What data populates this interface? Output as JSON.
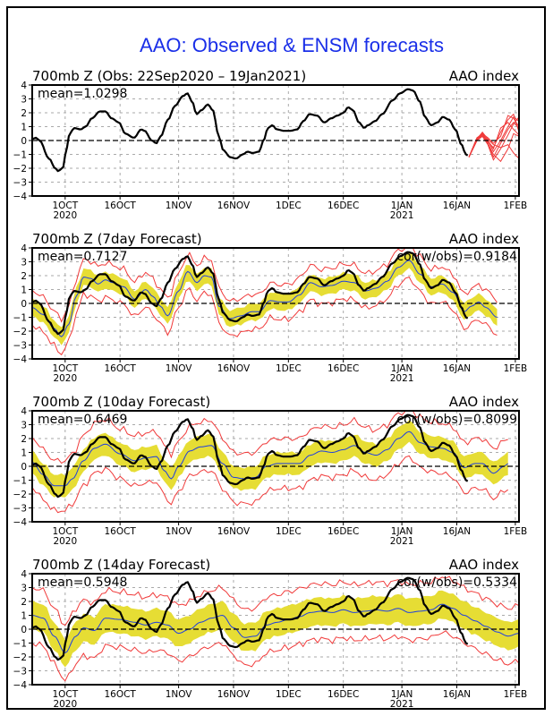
{
  "chart_data": {
    "type": "line",
    "title": "AAO: Observed & ENSM forecasts",
    "start_date": "22Sep2020",
    "x_unit": "days since 22Sep2020",
    "xlim": [
      0,
      133
    ],
    "ylim": [
      -4,
      4
    ],
    "yticks": [
      -4,
      -3,
      -2,
      -1,
      0,
      1,
      2,
      3,
      4
    ],
    "xticks": [
      {
        "day": 9,
        "label": "1OCT",
        "sub": "2020"
      },
      {
        "day": 24,
        "label": "16OCT",
        "sub": ""
      },
      {
        "day": 40,
        "label": "1NOV",
        "sub": ""
      },
      {
        "day": 55,
        "label": "16NOV",
        "sub": ""
      },
      {
        "day": 70,
        "label": "1DEC",
        "sub": ""
      },
      {
        "day": 85,
        "label": "16DEC",
        "sub": ""
      },
      {
        "day": 101,
        "label": "1JAN",
        "sub": "2021"
      },
      {
        "day": 116,
        "label": "16JAN",
        "sub": ""
      },
      {
        "day": 132,
        "label": "1FEB",
        "sub": ""
      }
    ],
    "grid": true,
    "observed": {
      "name": "Observed AAO index",
      "color": "#000000",
      "points": [
        [
          0,
          0.1
        ],
        [
          1,
          0.2
        ],
        [
          2,
          0
        ],
        [
          4.6,
          -1.3
        ],
        [
          6.3,
          -2.0
        ],
        [
          7,
          -2.2
        ],
        [
          8.3,
          -2.0
        ],
        [
          9.5,
          -0.5
        ],
        [
          10.2,
          0.5
        ],
        [
          11.5,
          0.9
        ],
        [
          13.2,
          0.8
        ],
        [
          14.6,
          1.0
        ],
        [
          16.3,
          1.6
        ],
        [
          18.5,
          2.1
        ],
        [
          20,
          2.1
        ],
        [
          21.7,
          1.6
        ],
        [
          23.7,
          1.3
        ],
        [
          25.4,
          0.5
        ],
        [
          27.8,
          0.2
        ],
        [
          29.8,
          0.8
        ],
        [
          30.7,
          0.7
        ],
        [
          32.7,
          0
        ],
        [
          33.9,
          -0.2
        ],
        [
          35.1,
          0.3
        ],
        [
          37.1,
          1.5
        ],
        [
          39,
          2.5
        ],
        [
          41.2,
          3.2
        ],
        [
          42.4,
          3.4
        ],
        [
          43.7,
          2.8
        ],
        [
          44.9,
          1.9
        ],
        [
          46.3,
          2.2
        ],
        [
          48,
          2.6
        ],
        [
          49.3,
          2.2
        ],
        [
          51,
          0.3
        ],
        [
          52.2,
          -0.7
        ],
        [
          54.1,
          -1.2
        ],
        [
          55.6,
          -1.3
        ],
        [
          57.6,
          -1.0
        ],
        [
          58.8,
          -0.8
        ],
        [
          60.2,
          -0.9
        ],
        [
          62,
          -0.8
        ],
        [
          63.2,
          0
        ],
        [
          64.4,
          0.9
        ],
        [
          65.6,
          1.1
        ],
        [
          66.8,
          0.8
        ],
        [
          68.8,
          0.7
        ],
        [
          70.5,
          0.7
        ],
        [
          72.4,
          0.8
        ],
        [
          74.1,
          1.4
        ],
        [
          75.8,
          1.9
        ],
        [
          77.8,
          1.8
        ],
        [
          79.8,
          1.3
        ],
        [
          81.7,
          1.6
        ],
        [
          83.4,
          1.8
        ],
        [
          85.1,
          2.0
        ],
        [
          86.3,
          2.4
        ],
        [
          87.6,
          2.2
        ],
        [
          89.3,
          1.3
        ],
        [
          90.7,
          0.9
        ],
        [
          91.7,
          1.1
        ],
        [
          93.7,
          1.4
        ],
        [
          95.6,
          1.9
        ],
        [
          98.5,
          2.9
        ],
        [
          100.5,
          3.4
        ],
        [
          102.7,
          3.7
        ],
        [
          104.1,
          3.6
        ],
        [
          105.9,
          2.8
        ],
        [
          107.3,
          1.7
        ],
        [
          109,
          1.1
        ],
        [
          110.7,
          1.3
        ],
        [
          112.2,
          1.7
        ],
        [
          113.9,
          1.5
        ],
        [
          115.6,
          0.8
        ],
        [
          117.3,
          -0.3
        ],
        [
          118.5,
          -1.0
        ],
        [
          119.3,
          -1.1
        ]
      ]
    },
    "panels": [
      {
        "title": "700mb Z (Obs: 22Sep2020 – 19Jan2021)",
        "right_label": "AAO index",
        "mean_label": "mean=1.0298",
        "cor_label": "",
        "ensemble_members": [
          [
            [
              119.3,
              -1.2
            ],
            [
              121.5,
              0
            ],
            [
              123,
              0.5
            ],
            [
              124.5,
              0.2
            ],
            [
              126,
              -0.2
            ],
            [
              128,
              0.3
            ],
            [
              130,
              1.8
            ],
            [
              131.5,
              1.6
            ],
            [
              133,
              1.0
            ]
          ],
          [
            [
              119.3,
              -1.2
            ],
            [
              121.5,
              0.1
            ],
            [
              123,
              0.4
            ],
            [
              124.5,
              -0.1
            ],
            [
              126,
              -0.5
            ],
            [
              128,
              0.6
            ],
            [
              130,
              1.5
            ],
            [
              131.5,
              1.9
            ],
            [
              133,
              0.6
            ]
          ],
          [
            [
              119.3,
              -1.2
            ],
            [
              121.5,
              0.2
            ],
            [
              123,
              0.5
            ],
            [
              124.5,
              0
            ],
            [
              126,
              -0.8
            ],
            [
              128,
              0
            ],
            [
              130,
              1.0
            ],
            [
              131.5,
              1.7
            ],
            [
              133,
              1.4
            ]
          ],
          [
            [
              119.3,
              -1.2
            ],
            [
              121.5,
              0
            ],
            [
              123,
              0.3
            ],
            [
              124.5,
              -0.3
            ],
            [
              126,
              -1.4
            ],
            [
              128,
              -0.6
            ],
            [
              130,
              0.4
            ],
            [
              131.5,
              1.2
            ],
            [
              133,
              1.7
            ]
          ],
          [
            [
              119.3,
              -1.2
            ],
            [
              121.5,
              0.1
            ],
            [
              123,
              0.6
            ],
            [
              124.5,
              0.1
            ],
            [
              126,
              -0.3
            ],
            [
              128,
              -0.5
            ],
            [
              130,
              -0.3
            ],
            [
              131.5,
              -0.9
            ],
            [
              133,
              -1.3
            ]
          ],
          [
            [
              119.3,
              -1.2
            ],
            [
              121.5,
              0
            ],
            [
              123,
              0.4
            ],
            [
              124.5,
              -0.2
            ],
            [
              126,
              -1.0
            ],
            [
              128,
              -1.5
            ],
            [
              130,
              -0.6
            ],
            [
              131.5,
              0.5
            ],
            [
              133,
              0.3
            ]
          ],
          [
            [
              119.3,
              -1.2
            ],
            [
              121.5,
              0.2
            ],
            [
              123,
              0.3
            ],
            [
              124.5,
              0
            ],
            [
              126,
              -0.6
            ],
            [
              128,
              0.9
            ],
            [
              130,
              1.3
            ],
            [
              131.5,
              0.8
            ],
            [
              133,
              0.4
            ]
          ],
          [
            [
              119.3,
              -1.2
            ],
            [
              121.5,
              0.1
            ],
            [
              123,
              0.5
            ],
            [
              124.5,
              -0.2
            ],
            [
              126,
              -1.2
            ],
            [
              128,
              -0.2
            ],
            [
              130,
              0.8
            ],
            [
              131.5,
              1.3
            ],
            [
              133,
              0.9
            ]
          ]
        ]
      },
      {
        "title": "700mb Z (7day Forecast)",
        "right_label": "AAO index",
        "mean_label": "mean=0.7127",
        "cor_label": "cor(w/obs)=0.9184",
        "forecast_end_day": 127,
        "mean": [
          [
            0,
            -0.3
          ],
          [
            3,
            -0.8
          ],
          [
            6,
            -1.8
          ],
          [
            8,
            -2.4
          ],
          [
            10,
            -1.5
          ],
          [
            12,
            0.5
          ],
          [
            14,
            1.9
          ],
          [
            16,
            1.8
          ],
          [
            18,
            1.4
          ],
          [
            20,
            1.7
          ],
          [
            22,
            1.5
          ],
          [
            25,
            1.2
          ],
          [
            28,
            0.3
          ],
          [
            31,
            1.0
          ],
          [
            33,
            0.5
          ],
          [
            35,
            -0.2
          ],
          [
            37,
            -0.9
          ],
          [
            40,
            0.9
          ],
          [
            42.5,
            2.3
          ],
          [
            45,
            1.5
          ],
          [
            47,
            2.0
          ],
          [
            49,
            1.9
          ],
          [
            51,
            -0.2
          ],
          [
            54,
            -1.1
          ],
          [
            57,
            -0.9
          ],
          [
            60,
            -0.6
          ],
          [
            62,
            -0.6
          ],
          [
            65,
            0.2
          ],
          [
            68,
            0.1
          ],
          [
            70,
            0.1
          ],
          [
            73,
            0.6
          ],
          [
            76,
            1.5
          ],
          [
            79,
            1.2
          ],
          [
            82,
            1.3
          ],
          [
            85,
            1.6
          ],
          [
            88,
            1.5
          ],
          [
            91,
            0.9
          ],
          [
            94,
            1.1
          ],
          [
            97,
            1.6
          ],
          [
            100,
            2.6
          ],
          [
            103,
            3.1
          ],
          [
            106,
            2.1
          ],
          [
            109,
            1.2
          ],
          [
            112,
            1.4
          ],
          [
            115,
            0.8
          ],
          [
            118,
            -0.6
          ],
          [
            120,
            -0.2
          ],
          [
            122,
            0.1
          ],
          [
            124,
            -0.3
          ],
          [
            127,
            -1.0
          ]
        ],
        "spread": 0.6,
        "outer_offset": 1.25
      },
      {
        "title": "700mb Z (10day Forecast)",
        "right_label": "AAO index",
        "mean_label": "mean=0.6469",
        "cor_label": "cor(w/obs)=0.8099",
        "forecast_end_day": 130,
        "mean": [
          [
            0,
            0.3
          ],
          [
            3,
            -0.6
          ],
          [
            6,
            -1.4
          ],
          [
            9,
            -1.4
          ],
          [
            11,
            -0.9
          ],
          [
            14,
            0.4
          ],
          [
            17,
            1.3
          ],
          [
            20,
            1.6
          ],
          [
            24,
            0.9
          ],
          [
            28,
            0.4
          ],
          [
            31,
            0.6
          ],
          [
            34,
            0.7
          ],
          [
            36,
            -0.3
          ],
          [
            38,
            -0.9
          ],
          [
            40,
            0
          ],
          [
            43,
            1.1
          ],
          [
            46,
            1.4
          ],
          [
            49,
            1.5
          ],
          [
            52,
            0.2
          ],
          [
            55,
            -0.8
          ],
          [
            58,
            -0.9
          ],
          [
            61,
            -0.8
          ],
          [
            64,
            0
          ],
          [
            67,
            0.2
          ],
          [
            70,
            0.2
          ],
          [
            73,
            0.2
          ],
          [
            76,
            0.8
          ],
          [
            79,
            1.1
          ],
          [
            82,
            1.0
          ],
          [
            85,
            1.2
          ],
          [
            88,
            1.5
          ],
          [
            91,
            1.0
          ],
          [
            94,
            0.8
          ],
          [
            97,
            1.2
          ],
          [
            100,
            2.0
          ],
          [
            103,
            2.5
          ],
          [
            106,
            1.7
          ],
          [
            109,
            1.4
          ],
          [
            112,
            1.3
          ],
          [
            115,
            1.0
          ],
          [
            118,
            -0.1
          ],
          [
            121,
            0.2
          ],
          [
            123,
            0.2
          ],
          [
            126,
            -0.5
          ],
          [
            129,
            0
          ],
          [
            130,
            0.2
          ]
        ],
        "spread": 0.8,
        "outer_offset": 1.8
      },
      {
        "title": "700mb Z (14day Forecast)",
        "right_label": "AAO index",
        "mean_label": "mean=0.5948",
        "cor_label": "cor(w/obs)=0.5334",
        "forecast_end_day": 133,
        "mean": [
          [
            0,
            1.0
          ],
          [
            3,
            0.8
          ],
          [
            6,
            -0.5
          ],
          [
            9,
            -1.7
          ],
          [
            12,
            -0.5
          ],
          [
            14,
            0.1
          ],
          [
            17,
            -0.1
          ],
          [
            20,
            0.8
          ],
          [
            24,
            0.7
          ],
          [
            28,
            0.5
          ],
          [
            31,
            0.3
          ],
          [
            34,
            0.5
          ],
          [
            37,
            0.3
          ],
          [
            40,
            -0.3
          ],
          [
            43,
            0
          ],
          [
            46,
            0.5
          ],
          [
            49,
            0.8
          ],
          [
            52,
            1.0
          ],
          [
            55,
            0.1
          ],
          [
            58,
            -0.6
          ],
          [
            61,
            -0.5
          ],
          [
            64,
            0.3
          ],
          [
            67,
            0.5
          ],
          [
            70,
            0.7
          ],
          [
            73,
            0.9
          ],
          [
            76,
            1.2
          ],
          [
            79,
            1.3
          ],
          [
            82,
            1.2
          ],
          [
            85,
            1.4
          ],
          [
            88,
            1.2
          ],
          [
            91,
            1.3
          ],
          [
            94,
            1.4
          ],
          [
            97,
            1.3
          ],
          [
            100,
            1.5
          ],
          [
            103,
            1.2
          ],
          [
            106,
            1.3
          ],
          [
            109,
            1.4
          ],
          [
            112,
            1.8
          ],
          [
            115,
            1.5
          ],
          [
            118,
            1.0
          ],
          [
            121,
            0.6
          ],
          [
            124,
            0.2
          ],
          [
            127,
            -0.2
          ],
          [
            130,
            -0.5
          ],
          [
            133,
            -0.3
          ]
        ],
        "spread": 1.0,
        "outer_offset": 2.0
      }
    ],
    "colors": {
      "title": "#1a2fe8",
      "observed": "#000000",
      "ens_mean": "#1f3fe0",
      "ens_spread": "#e6dd34",
      "ens_bounds": "#f03a3a",
      "members": "#f03a3a",
      "grid": "#aaaaaa"
    }
  }
}
